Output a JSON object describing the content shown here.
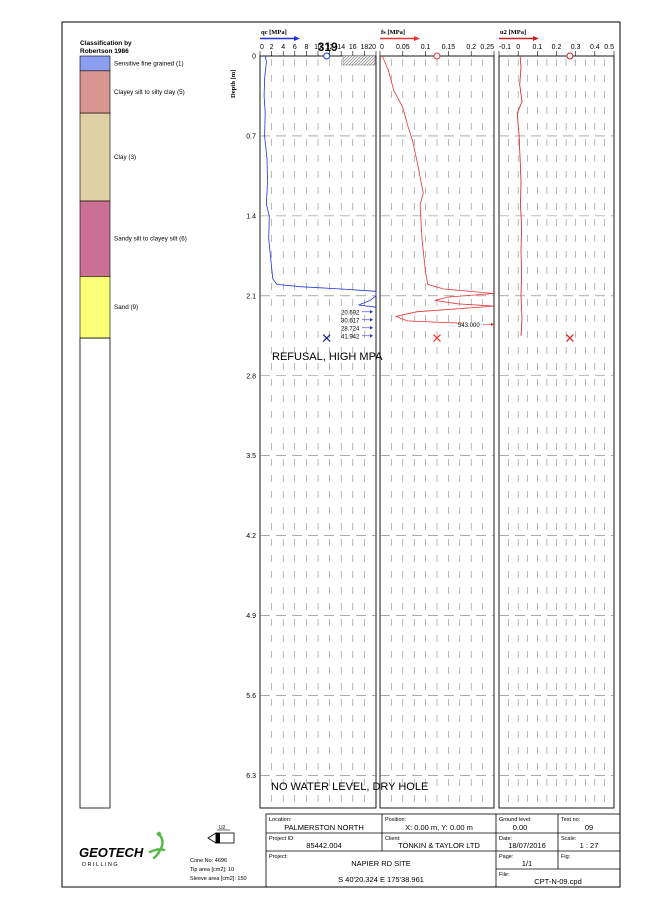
{
  "legend": {
    "title_line1": "Classification by",
    "title_line2": "Robertson 1986",
    "items": [
      {
        "label": "Sensitive fine grained (1)",
        "color": "#8c9ef0"
      },
      {
        "label": "Clayey silt to silty clay (5)",
        "color": "#d99690"
      },
      {
        "label": "Clay (3)",
        "color": "#e0d0a6"
      },
      {
        "label": "Sandy silt to clayey silt (6)",
        "color": "#cc6f95"
      },
      {
        "label": "Sand (9)",
        "color": "#fbff76"
      }
    ]
  },
  "chart_data": {
    "type": "line",
    "depth_label": "Depth [m]",
    "depth_ticks": [
      "0",
      "0.7",
      "1.4",
      "2.1",
      "2.8",
      "3.5",
      "4.2",
      "4.9",
      "5.6",
      "6.3"
    ],
    "depth_range": [
      0,
      6.6
    ],
    "soil_layers": [
      {
        "class": "Sensitive fine grained (1)",
        "top": 0.0,
        "bottom": 0.13
      },
      {
        "class": "Clayey silt to silty clay (5)",
        "top": 0.13,
        "bottom": 0.5
      },
      {
        "class": "Clay (3)",
        "top": 0.5,
        "bottom": 1.27
      },
      {
        "class": "Sandy silt to clayey silt (6)",
        "top": 1.27,
        "bottom": 1.93
      },
      {
        "class": "Sand (9)",
        "top": 1.93,
        "bottom": 2.47
      }
    ],
    "panels": [
      {
        "key": "qc",
        "label": "qc [MPa]",
        "ticks": [
          "0",
          "2",
          "4",
          "6",
          "8",
          "10",
          "12",
          "14",
          "16",
          "18",
          "20"
        ],
        "range": [
          0,
          20
        ],
        "color": "#2233dd",
        "marker_value": 11.5,
        "max_label": "319",
        "series": [
          {
            "name": "qc",
            "points": [
              [
                0.9,
                0.0
              ],
              [
                1.1,
                0.05
              ],
              [
                1.0,
                0.1
              ],
              [
                0.8,
                0.2
              ],
              [
                0.7,
                0.35
              ],
              [
                0.9,
                0.5
              ],
              [
                0.8,
                0.7
              ],
              [
                1.2,
                0.9
              ],
              [
                1.3,
                1.1
              ],
              [
                1.1,
                1.3
              ],
              [
                1.6,
                1.4
              ],
              [
                1.5,
                1.6
              ],
              [
                1.9,
                1.8
              ],
              [
                2.2,
                1.95
              ],
              [
                2.9,
                2.0
              ],
              [
                7.0,
                2.02
              ],
              [
                14.0,
                2.04
              ],
              [
                20.0,
                2.06
              ],
              [
                20.0,
                2.1
              ],
              [
                19.0,
                2.14
              ],
              [
                17.0,
                2.18
              ],
              [
                20.0,
                2.2
              ]
            ]
          }
        ],
        "annotations": [
          {
            "text": "20.692",
            "depth": 2.24
          },
          {
            "text": "30.617",
            "depth": 2.31
          },
          {
            "text": "28.724",
            "depth": 2.38
          },
          {
            "text": "41.942",
            "depth": 2.45
          }
        ],
        "end_marker_depth": 2.47
      },
      {
        "key": "fs",
        "label": "fs [MPa]",
        "ticks": [
          "0",
          "0.05",
          "0.1",
          "0.15",
          "0.2",
          "0.25"
        ],
        "range": [
          0,
          0.25
        ],
        "color": "#ee3333",
        "marker_value": 0.125,
        "series": [
          {
            "name": "fs",
            "points": [
              [
                0.005,
                0.0
              ],
              [
                0.018,
                0.12
              ],
              [
                0.03,
                0.3
              ],
              [
                0.05,
                0.45
              ],
              [
                0.06,
                0.6
              ],
              [
                0.072,
                0.75
              ],
              [
                0.08,
                0.9
              ],
              [
                0.085,
                1.0
              ],
              [
                0.09,
                1.1
              ],
              [
                0.095,
                1.2
              ],
              [
                0.088,
                1.3
              ],
              [
                0.09,
                1.45
              ],
              [
                0.092,
                1.6
              ],
              [
                0.096,
                1.75
              ],
              [
                0.1,
                1.9
              ],
              [
                0.105,
                2.0
              ],
              [
                0.14,
                2.04
              ],
              [
                0.25,
                2.08
              ],
              [
                0.15,
                2.11
              ],
              [
                0.12,
                2.14
              ],
              [
                0.17,
                2.17
              ],
              [
                0.25,
                2.19
              ],
              [
                0.08,
                2.24
              ],
              [
                0.035,
                2.28
              ],
              [
                0.06,
                2.32
              ],
              [
                0.12,
                2.33
              ],
              [
                0.18,
                2.34
              ]
            ]
          }
        ],
        "annotations": [
          {
            "text": "543.000",
            "depth": 2.35
          }
        ],
        "end_marker_depth": 2.47
      },
      {
        "key": "u2",
        "label": "u2 [MPa]",
        "ticks": [
          "-0.1",
          "0",
          "0.1",
          "0.2",
          "0.3",
          "0.4",
          "0.5"
        ],
        "range": [
          -0.1,
          0.5
        ],
        "color": "#cc2222",
        "marker_value": 0.27,
        "series": [
          {
            "name": "u2",
            "points": [
              [
                0.01,
                0.0
              ],
              [
                0.015,
                0.1
              ],
              [
                0.008,
                0.25
              ],
              [
                0.02,
                0.4
              ],
              [
                -0.005,
                0.5
              ],
              [
                0.005,
                0.7
              ],
              [
                0.01,
                0.9
              ],
              [
                0.015,
                1.1
              ],
              [
                0.012,
                1.3
              ],
              [
                0.018,
                1.5
              ],
              [
                0.015,
                1.7
              ],
              [
                0.018,
                1.9
              ],
              [
                0.015,
                2.1
              ],
              [
                0.02,
                2.3
              ],
              [
                0.015,
                2.45
              ]
            ]
          }
        ],
        "end_marker_depth": 2.47
      }
    ]
  },
  "notes": {
    "refusal": "REFUSAL, HIGH MPA",
    "water": "NO WATER LEVEL, DRY HOLE"
  },
  "footer": {
    "logo_main": "GEOTECH",
    "logo_sub": "D R I L L I N G",
    "cone_label": "U2",
    "cone_no": "Cone No: 4696",
    "tip_area": "Tip area [cm2]: 10",
    "sleeve_area": "Sleeve area [cm2]: 150",
    "location_label": "Location:",
    "location_value": "PALMERSTON NORTH",
    "position_label": "Position:",
    "position_value": "X: 0.00 m, Y: 0.00 m",
    "ground_label": "Ground level:",
    "ground_value": "0.00",
    "test_label": "Test no:",
    "test_value": "09",
    "project_id_label": "Project ID:",
    "project_id_value": "85442.004",
    "client_label": "Client:",
    "client_value": "TONKIN & TAYLOR LTD",
    "date_label": "Date:",
    "date_value": "18/07/2016",
    "scale_label": "Scale:",
    "scale_value": "1 : 27",
    "project_label": "Project:",
    "project_value": "NAPIER RD SITE",
    "page_label": "Page:",
    "page_value": "1/1",
    "fig_label": "Fig:",
    "coords_value": "S 40'20.324 E 175'38.961",
    "file_label": "File:",
    "file_value": "CPT-N-09.cpd"
  }
}
